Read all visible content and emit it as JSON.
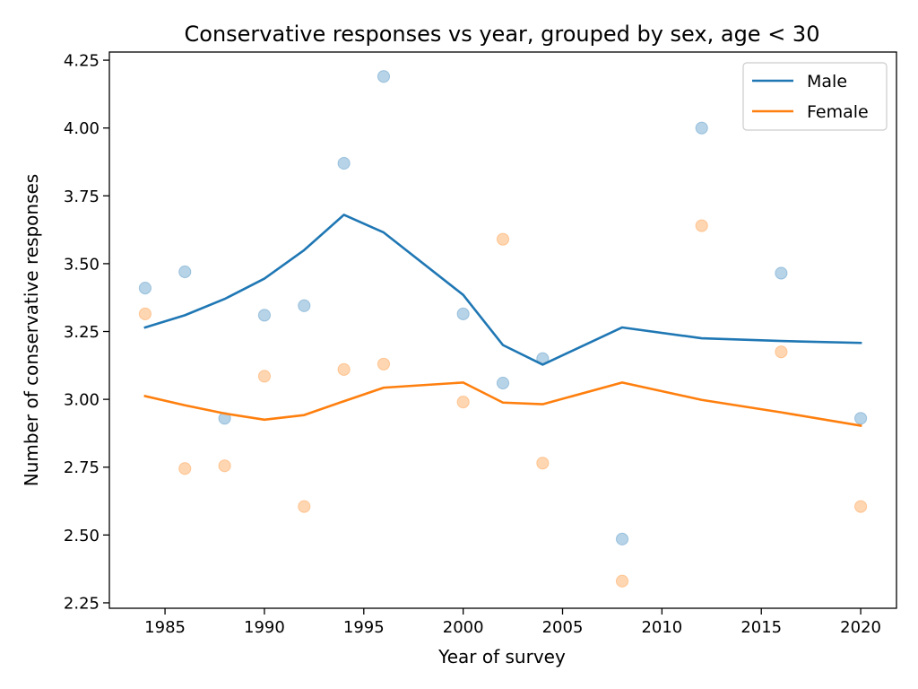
{
  "chart_data": {
    "type": "line",
    "title": "Conservative responses vs year, grouped by sex, age < 30",
    "xlabel": "Year of survey",
    "ylabel": "Number of conservative responses",
    "xlim": [
      1982.2,
      2021.8
    ],
    "ylim": [
      2.23,
      4.28
    ],
    "xticks": [
      1985,
      1990,
      1995,
      2000,
      2005,
      2010,
      2015,
      2020
    ],
    "xtick_labels": [
      "1985",
      "1990",
      "1995",
      "2000",
      "2005",
      "2010",
      "2015",
      "2020"
    ],
    "yticks": [
      2.25,
      2.5,
      2.75,
      3.0,
      3.25,
      3.5,
      3.75,
      4.0,
      4.25
    ],
    "ytick_labels": [
      "2.25",
      "2.50",
      "2.75",
      "3.00",
      "3.25",
      "3.50",
      "3.75",
      "4.00",
      "4.25"
    ],
    "grid": false,
    "legend_position": "top-right",
    "series": [
      {
        "name": "Male",
        "color": "#1f77b4",
        "line": {
          "x": [
            1984,
            1986,
            1988,
            1990,
            1992,
            1994,
            1996,
            2000,
            2002,
            2004,
            2008,
            2012,
            2016,
            2020
          ],
          "y": [
            3.265,
            3.31,
            3.37,
            3.445,
            3.55,
            3.68,
            3.615,
            3.385,
            3.2,
            3.128,
            3.265,
            3.225,
            3.215,
            3.208
          ]
        },
        "points": {
          "x": [
            1984,
            1986,
            1988,
            1990,
            1992,
            1994,
            1996,
            2000,
            2002,
            2004,
            2008,
            2012,
            2016,
            2020
          ],
          "y": [
            3.41,
            3.47,
            2.93,
            3.31,
            3.345,
            3.87,
            4.19,
            3.315,
            3.06,
            3.15,
            2.485,
            4.0,
            3.465,
            2.93
          ]
        }
      },
      {
        "name": "Female",
        "color": "#ff7f0e",
        "line": {
          "x": [
            1984,
            1986,
            1988,
            1990,
            1992,
            1994,
            1996,
            2000,
            2002,
            2004,
            2008,
            2012,
            2016,
            2020
          ],
          "y": [
            3.012,
            2.978,
            2.948,
            2.925,
            2.942,
            2.993,
            3.043,
            3.062,
            2.988,
            2.982,
            3.062,
            2.998,
            2.952,
            2.903
          ]
        },
        "points": {
          "x": [
            1984,
            1986,
            1988,
            1990,
            1992,
            1994,
            1996,
            2000,
            2002,
            2004,
            2008,
            2012,
            2016,
            2020
          ],
          "y": [
            3.315,
            2.745,
            2.755,
            3.085,
            2.605,
            3.11,
            3.13,
            2.99,
            3.59,
            2.765,
            2.33,
            3.64,
            3.175,
            2.605
          ]
        }
      }
    ]
  }
}
